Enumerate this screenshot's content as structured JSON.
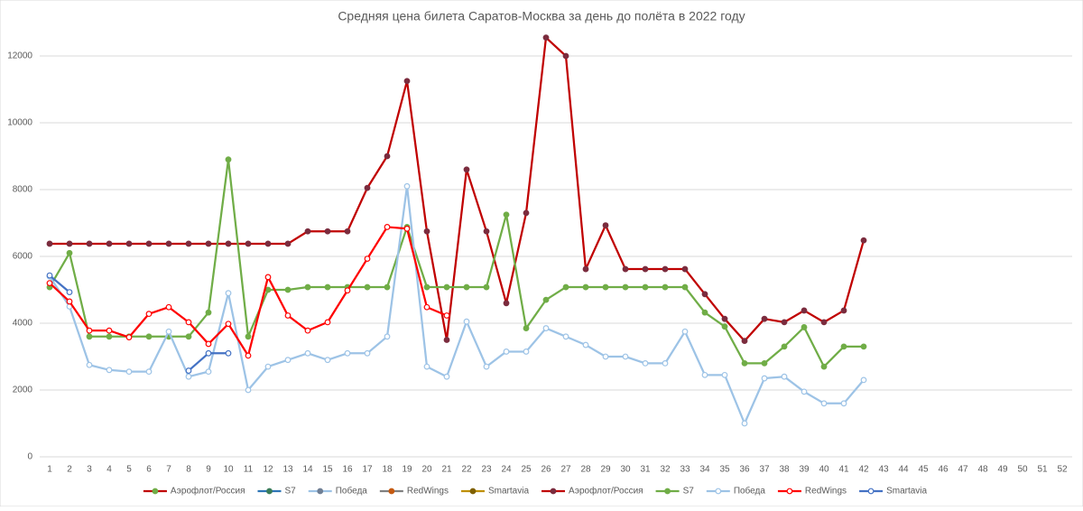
{
  "chart_data": {
    "type": "line",
    "title": "Средняя цена билета Саратов-Москва за день до полёта в 2022 году",
    "categories": [
      "1",
      "2",
      "3",
      "4",
      "5",
      "6",
      "7",
      "8",
      "9",
      "10",
      "11",
      "12",
      "13",
      "14",
      "15",
      "16",
      "17",
      "18",
      "19",
      "20",
      "21",
      "22",
      "23",
      "24",
      "25",
      "26",
      "27",
      "28",
      "29",
      "30",
      "31",
      "32",
      "33",
      "34",
      "35",
      "36",
      "37",
      "38",
      "39",
      "40",
      "41",
      "42",
      "43",
      "44",
      "45",
      "46",
      "47",
      "48",
      "49",
      "50",
      "51",
      "52"
    ],
    "ylim": [
      0,
      12500
    ],
    "yticks": [
      0,
      2000,
      4000,
      6000,
      8000,
      10000,
      12000
    ],
    "grid": true,
    "legend": "bottom",
    "series": [
      {
        "name": "Аэрофлот/Россия",
        "color": "#c00000",
        "marker_color": "#70ad47",
        "marker_fill": "#70ad47",
        "values": [
          null,
          null,
          null,
          null,
          null,
          null,
          null,
          null,
          null,
          null,
          null,
          null,
          null,
          null,
          null,
          null,
          null,
          null,
          null,
          null,
          null,
          null,
          null,
          null,
          null,
          null,
          null,
          null,
          null,
          null,
          null,
          null,
          null,
          null,
          null,
          null,
          null,
          null,
          null,
          null,
          null,
          null,
          null,
          null,
          null,
          null,
          null,
          null,
          null,
          null,
          null,
          null
        ]
      },
      {
        "name": "S7",
        "color": "#2e75b6",
        "marker_color": "#3a7d5a",
        "marker_fill": "#3a7d5a",
        "values": [
          null,
          null,
          null,
          null,
          null,
          null,
          null,
          null,
          null,
          null,
          null,
          null,
          null,
          null,
          null,
          null,
          null,
          null,
          null,
          null,
          null,
          null,
          null,
          null,
          null,
          null,
          null,
          null,
          null,
          null,
          null,
          null,
          null,
          null,
          null,
          null,
          null,
          null,
          null,
          null,
          null,
          null,
          null,
          null,
          null,
          null,
          null,
          null,
          null,
          null,
          null,
          null
        ]
      },
      {
        "name": "Победа",
        "color": "#9dc3e6",
        "marker_color": "#6f7f95",
        "marker_fill": "#6f7f95",
        "values": [
          null,
          null,
          null,
          null,
          null,
          null,
          null,
          null,
          null,
          null,
          null,
          null,
          null,
          null,
          null,
          null,
          null,
          null,
          null,
          null,
          null,
          null,
          null,
          null,
          null,
          null,
          null,
          null,
          null,
          null,
          null,
          null,
          null,
          null,
          null,
          null,
          null,
          null,
          null,
          null,
          null,
          null,
          null,
          null,
          null,
          null,
          null,
          null,
          null,
          null,
          null,
          null
        ]
      },
      {
        "name": "RedWings",
        "color": "#808080",
        "marker_color": "#c55a11",
        "marker_fill": "#c55a11",
        "values": [
          null,
          null,
          null,
          null,
          null,
          null,
          null,
          null,
          null,
          null,
          null,
          null,
          null,
          null,
          null,
          null,
          null,
          null,
          null,
          null,
          null,
          null,
          null,
          null,
          null,
          null,
          null,
          null,
          null,
          null,
          null,
          null,
          null,
          null,
          null,
          null,
          null,
          null,
          null,
          null,
          null,
          null,
          null,
          null,
          null,
          null,
          null,
          null,
          null,
          null,
          null,
          null
        ]
      },
      {
        "name": "Smartavia",
        "color": "#bf9000",
        "marker_color": "#7f6000",
        "marker_fill": "#7f6000",
        "values": [
          null,
          null,
          null,
          null,
          null,
          null,
          null,
          null,
          null,
          null,
          null,
          null,
          null,
          null,
          null,
          null,
          null,
          null,
          null,
          null,
          null,
          null,
          null,
          null,
          null,
          null,
          null,
          null,
          null,
          null,
          null,
          null,
          null,
          null,
          null,
          null,
          null,
          null,
          null,
          null,
          null,
          null,
          null,
          null,
          null,
          null,
          null,
          null,
          null,
          null,
          null,
          null
        ]
      },
      {
        "name": "Аэрофлот/Россия",
        "color": "#c00000",
        "marker_color": "#7b2c3e",
        "marker_fill": "#7b2c3e",
        "values": [
          6380,
          6380,
          6380,
          6380,
          6380,
          6380,
          6380,
          6380,
          6380,
          6380,
          6380,
          6380,
          6380,
          6750,
          6750,
          6750,
          8050,
          9000,
          11250,
          6750,
          3500,
          8600,
          6750,
          4600,
          7300,
          12550,
          12000,
          5620,
          6930,
          5620,
          5620,
          5620,
          5620,
          4870,
          4130,
          3470,
          4130,
          4030,
          4380,
          4030,
          4380,
          6480,
          null,
          null,
          null,
          null,
          null,
          null,
          null,
          null,
          null,
          null
        ]
      },
      {
        "name": "S7",
        "color": "#70ad47",
        "marker_color": "#70ad47",
        "marker_fill": "#70ad47",
        "values": [
          5080,
          6100,
          3600,
          3600,
          3600,
          3600,
          3600,
          3600,
          4320,
          8900,
          3600,
          5000,
          5000,
          5080,
          5080,
          5080,
          5080,
          5080,
          6880,
          5080,
          5080,
          5080,
          5080,
          7250,
          3850,
          4700,
          5080,
          5080,
          5080,
          5080,
          5080,
          5080,
          5080,
          4320,
          3900,
          2800,
          2800,
          3300,
          3880,
          2700,
          3300,
          3300,
          null,
          null,
          null,
          null,
          null,
          null,
          null,
          null,
          null,
          null
        ]
      },
      {
        "name": "Победа",
        "color": "#9dc3e6",
        "marker_color": "#9dc3e6",
        "marker_fill": "#ffffff",
        "values": [
          5400,
          4500,
          2750,
          2600,
          2550,
          2550,
          3750,
          2400,
          2550,
          4900,
          2000,
          2700,
          2900,
          3100,
          2900,
          3100,
          3100,
          3600,
          8100,
          2700,
          2400,
          4050,
          2700,
          3150,
          3150,
          3850,
          3600,
          3350,
          3000,
          3000,
          2800,
          2800,
          3750,
          2450,
          2450,
          1000,
          2350,
          2400,
          1950,
          1600,
          1600,
          2300,
          null,
          null,
          null,
          null,
          null,
          null,
          null,
          null,
          null,
          null
        ]
      },
      {
        "name": "RedWings",
        "color": "#ff0000",
        "marker_color": "#ff0000",
        "marker_fill": "#ffffff",
        "values": [
          5200,
          4650,
          3780,
          3780,
          3580,
          4280,
          4480,
          4030,
          3380,
          3980,
          3030,
          5380,
          4230,
          3780,
          4030,
          4980,
          5930,
          6880,
          6830,
          4480,
          4230,
          null,
          null,
          null,
          null,
          null,
          null,
          null,
          null,
          null,
          null,
          null,
          null,
          null,
          null,
          null,
          null,
          null,
          null,
          null,
          null,
          null,
          null,
          null,
          null,
          null,
          null,
          null,
          null,
          null,
          null,
          null
        ]
      },
      {
        "name": "Smartavia",
        "color": "#4472c4",
        "marker_color": "#4472c4",
        "marker_fill": "#ffffff",
        "values": [
          5430,
          4930,
          null,
          null,
          null,
          null,
          null,
          2580,
          3100,
          3100,
          null,
          null,
          null,
          null,
          null,
          null,
          null,
          null,
          null,
          null,
          null,
          null,
          null,
          null,
          null,
          null,
          null,
          null,
          null,
          null,
          null,
          null,
          null,
          null,
          null,
          null,
          null,
          null,
          null,
          null,
          null,
          null,
          null,
          null,
          null,
          null,
          null,
          null,
          null,
          null,
          null,
          null
        ]
      }
    ]
  }
}
